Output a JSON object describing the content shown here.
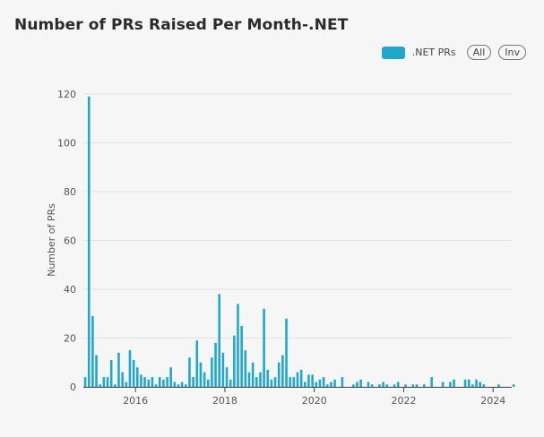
{
  "chart_data": {
    "type": "bar",
    "title": "Number of PRs Raised Per Month-.NET",
    "xlabel": "",
    "ylabel": "Number of PRs",
    "ylim": [
      0,
      120
    ],
    "yticks": [
      0,
      20,
      40,
      60,
      80,
      100,
      120
    ],
    "xticks": [
      "2016",
      "2018",
      "2020",
      "2022",
      "2024"
    ],
    "legend_position": "top-right",
    "grid": true,
    "series": [
      {
        "name": ".NET PRs",
        "color": "#1fa8cc",
        "points": [
          {
            "x": "2014-11",
            "y": 4
          },
          {
            "x": "2014-12",
            "y": 119
          },
          {
            "x": "2015-01",
            "y": 29
          },
          {
            "x": "2015-02",
            "y": 13
          },
          {
            "x": "2015-03",
            "y": 1
          },
          {
            "x": "2015-04",
            "y": 4
          },
          {
            "x": "2015-05",
            "y": 4
          },
          {
            "x": "2015-06",
            "y": 11
          },
          {
            "x": "2015-07",
            "y": 1
          },
          {
            "x": "2015-08",
            "y": 14
          },
          {
            "x": "2015-09",
            "y": 6
          },
          {
            "x": "2015-10",
            "y": 2
          },
          {
            "x": "2015-11",
            "y": 15
          },
          {
            "x": "2015-12",
            "y": 11
          },
          {
            "x": "2016-01",
            "y": 8
          },
          {
            "x": "2016-02",
            "y": 5
          },
          {
            "x": "2016-03",
            "y": 4
          },
          {
            "x": "2016-04",
            "y": 3
          },
          {
            "x": "2016-05",
            "y": 4
          },
          {
            "x": "2016-06",
            "y": 1
          },
          {
            "x": "2016-07",
            "y": 4
          },
          {
            "x": "2016-08",
            "y": 3
          },
          {
            "x": "2016-09",
            "y": 4
          },
          {
            "x": "2016-10",
            "y": 8
          },
          {
            "x": "2016-11",
            "y": 2
          },
          {
            "x": "2016-12",
            "y": 1
          },
          {
            "x": "2017-01",
            "y": 2
          },
          {
            "x": "2017-02",
            "y": 1
          },
          {
            "x": "2017-03",
            "y": 12
          },
          {
            "x": "2017-04",
            "y": 4
          },
          {
            "x": "2017-05",
            "y": 19
          },
          {
            "x": "2017-06",
            "y": 10
          },
          {
            "x": "2017-07",
            "y": 6
          },
          {
            "x": "2017-08",
            "y": 3
          },
          {
            "x": "2017-09",
            "y": 12
          },
          {
            "x": "2017-10",
            "y": 18
          },
          {
            "x": "2017-11",
            "y": 38
          },
          {
            "x": "2017-12",
            "y": 14
          },
          {
            "x": "2018-01",
            "y": 8
          },
          {
            "x": "2018-02",
            "y": 3
          },
          {
            "x": "2018-03",
            "y": 21
          },
          {
            "x": "2018-04",
            "y": 34
          },
          {
            "x": "2018-05",
            "y": 25
          },
          {
            "x": "2018-06",
            "y": 15
          },
          {
            "x": "2018-07",
            "y": 6
          },
          {
            "x": "2018-08",
            "y": 10
          },
          {
            "x": "2018-09",
            "y": 4
          },
          {
            "x": "2018-10",
            "y": 6
          },
          {
            "x": "2018-11",
            "y": 32
          },
          {
            "x": "2018-12",
            "y": 7
          },
          {
            "x": "2019-01",
            "y": 3
          },
          {
            "x": "2019-02",
            "y": 4
          },
          {
            "x": "2019-03",
            "y": 10
          },
          {
            "x": "2019-04",
            "y": 13
          },
          {
            "x": "2019-05",
            "y": 28
          },
          {
            "x": "2019-06",
            "y": 4
          },
          {
            "x": "2019-07",
            "y": 4
          },
          {
            "x": "2019-08",
            "y": 6
          },
          {
            "x": "2019-09",
            "y": 7
          },
          {
            "x": "2019-10",
            "y": 2
          },
          {
            "x": "2019-11",
            "y": 5
          },
          {
            "x": "2019-12",
            "y": 5
          },
          {
            "x": "2020-01",
            "y": 2
          },
          {
            "x": "2020-02",
            "y": 3
          },
          {
            "x": "2020-03",
            "y": 4
          },
          {
            "x": "2020-04",
            "y": 1
          },
          {
            "x": "2020-05",
            "y": 2
          },
          {
            "x": "2020-06",
            "y": 3
          },
          {
            "x": "2020-08",
            "y": 4
          },
          {
            "x": "2020-11",
            "y": 1
          },
          {
            "x": "2020-12",
            "y": 2
          },
          {
            "x": "2021-01",
            "y": 3
          },
          {
            "x": "2021-03",
            "y": 2
          },
          {
            "x": "2021-04",
            "y": 1
          },
          {
            "x": "2021-06",
            "y": 1
          },
          {
            "x": "2021-07",
            "y": 2
          },
          {
            "x": "2021-08",
            "y": 1
          },
          {
            "x": "2021-10",
            "y": 1
          },
          {
            "x": "2021-11",
            "y": 2
          },
          {
            "x": "2022-01",
            "y": 1
          },
          {
            "x": "2022-03",
            "y": 1
          },
          {
            "x": "2022-04",
            "y": 1
          },
          {
            "x": "2022-06",
            "y": 1
          },
          {
            "x": "2022-08",
            "y": 4
          },
          {
            "x": "2022-11",
            "y": 2
          },
          {
            "x": "2023-01",
            "y": 2
          },
          {
            "x": "2023-02",
            "y": 3
          },
          {
            "x": "2023-05",
            "y": 3
          },
          {
            "x": "2023-06",
            "y": 3
          },
          {
            "x": "2023-07",
            "y": 1
          },
          {
            "x": "2023-08",
            "y": 3
          },
          {
            "x": "2023-09",
            "y": 2
          },
          {
            "x": "2023-10",
            "y": 1
          },
          {
            "x": "2024-02",
            "y": 1
          },
          {
            "x": "2024-06",
            "y": 1
          }
        ]
      }
    ]
  },
  "legend": {
    "label": ".NET PRs",
    "all_label": "All",
    "inv_label": "Inv"
  }
}
